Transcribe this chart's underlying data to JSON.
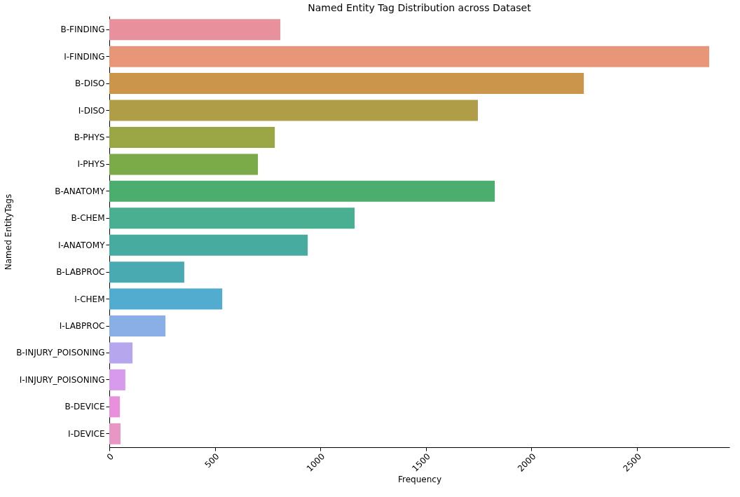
{
  "chart_data": {
    "type": "bar",
    "orientation": "horizontal",
    "title": "Named Entity Tag Distribution across Dataset",
    "xlabel": "Frequency",
    "ylabel": "Named EntityTags",
    "categories": [
      "B-FINDING",
      "I-FINDING",
      "B-DISO",
      "I-DISO",
      "B-PHYS",
      "I-PHYS",
      "B-ANATOMY",
      "B-CHEM",
      "I-ANATOMY",
      "B-LABPROC",
      "I-CHEM",
      "I-LABPROC",
      "B-INJURY_POISONING",
      "I-INJURY_POISONING",
      "B-DEVICE",
      "I-DEVICE"
    ],
    "values": [
      810,
      2842,
      2248,
      1746,
      784,
      704,
      1826,
      1162,
      940,
      355,
      535,
      266,
      110,
      76,
      50,
      53
    ],
    "colors": [
      "#e8909c",
      "#e8967a",
      "#cb964b",
      "#b09d48",
      "#9ba645",
      "#7aab48",
      "#4bae6e",
      "#4aae90",
      "#48aba0",
      "#4aaab2",
      "#52acd0",
      "#8aaee6",
      "#b6a6ee",
      "#d79aec",
      "#e890dc",
      "#e897c4"
    ],
    "xlim": [
      0,
      2938
    ],
    "xticks": [
      0,
      500,
      1000,
      1500,
      2000,
      2500
    ],
    "grid": false,
    "legend": false
  }
}
